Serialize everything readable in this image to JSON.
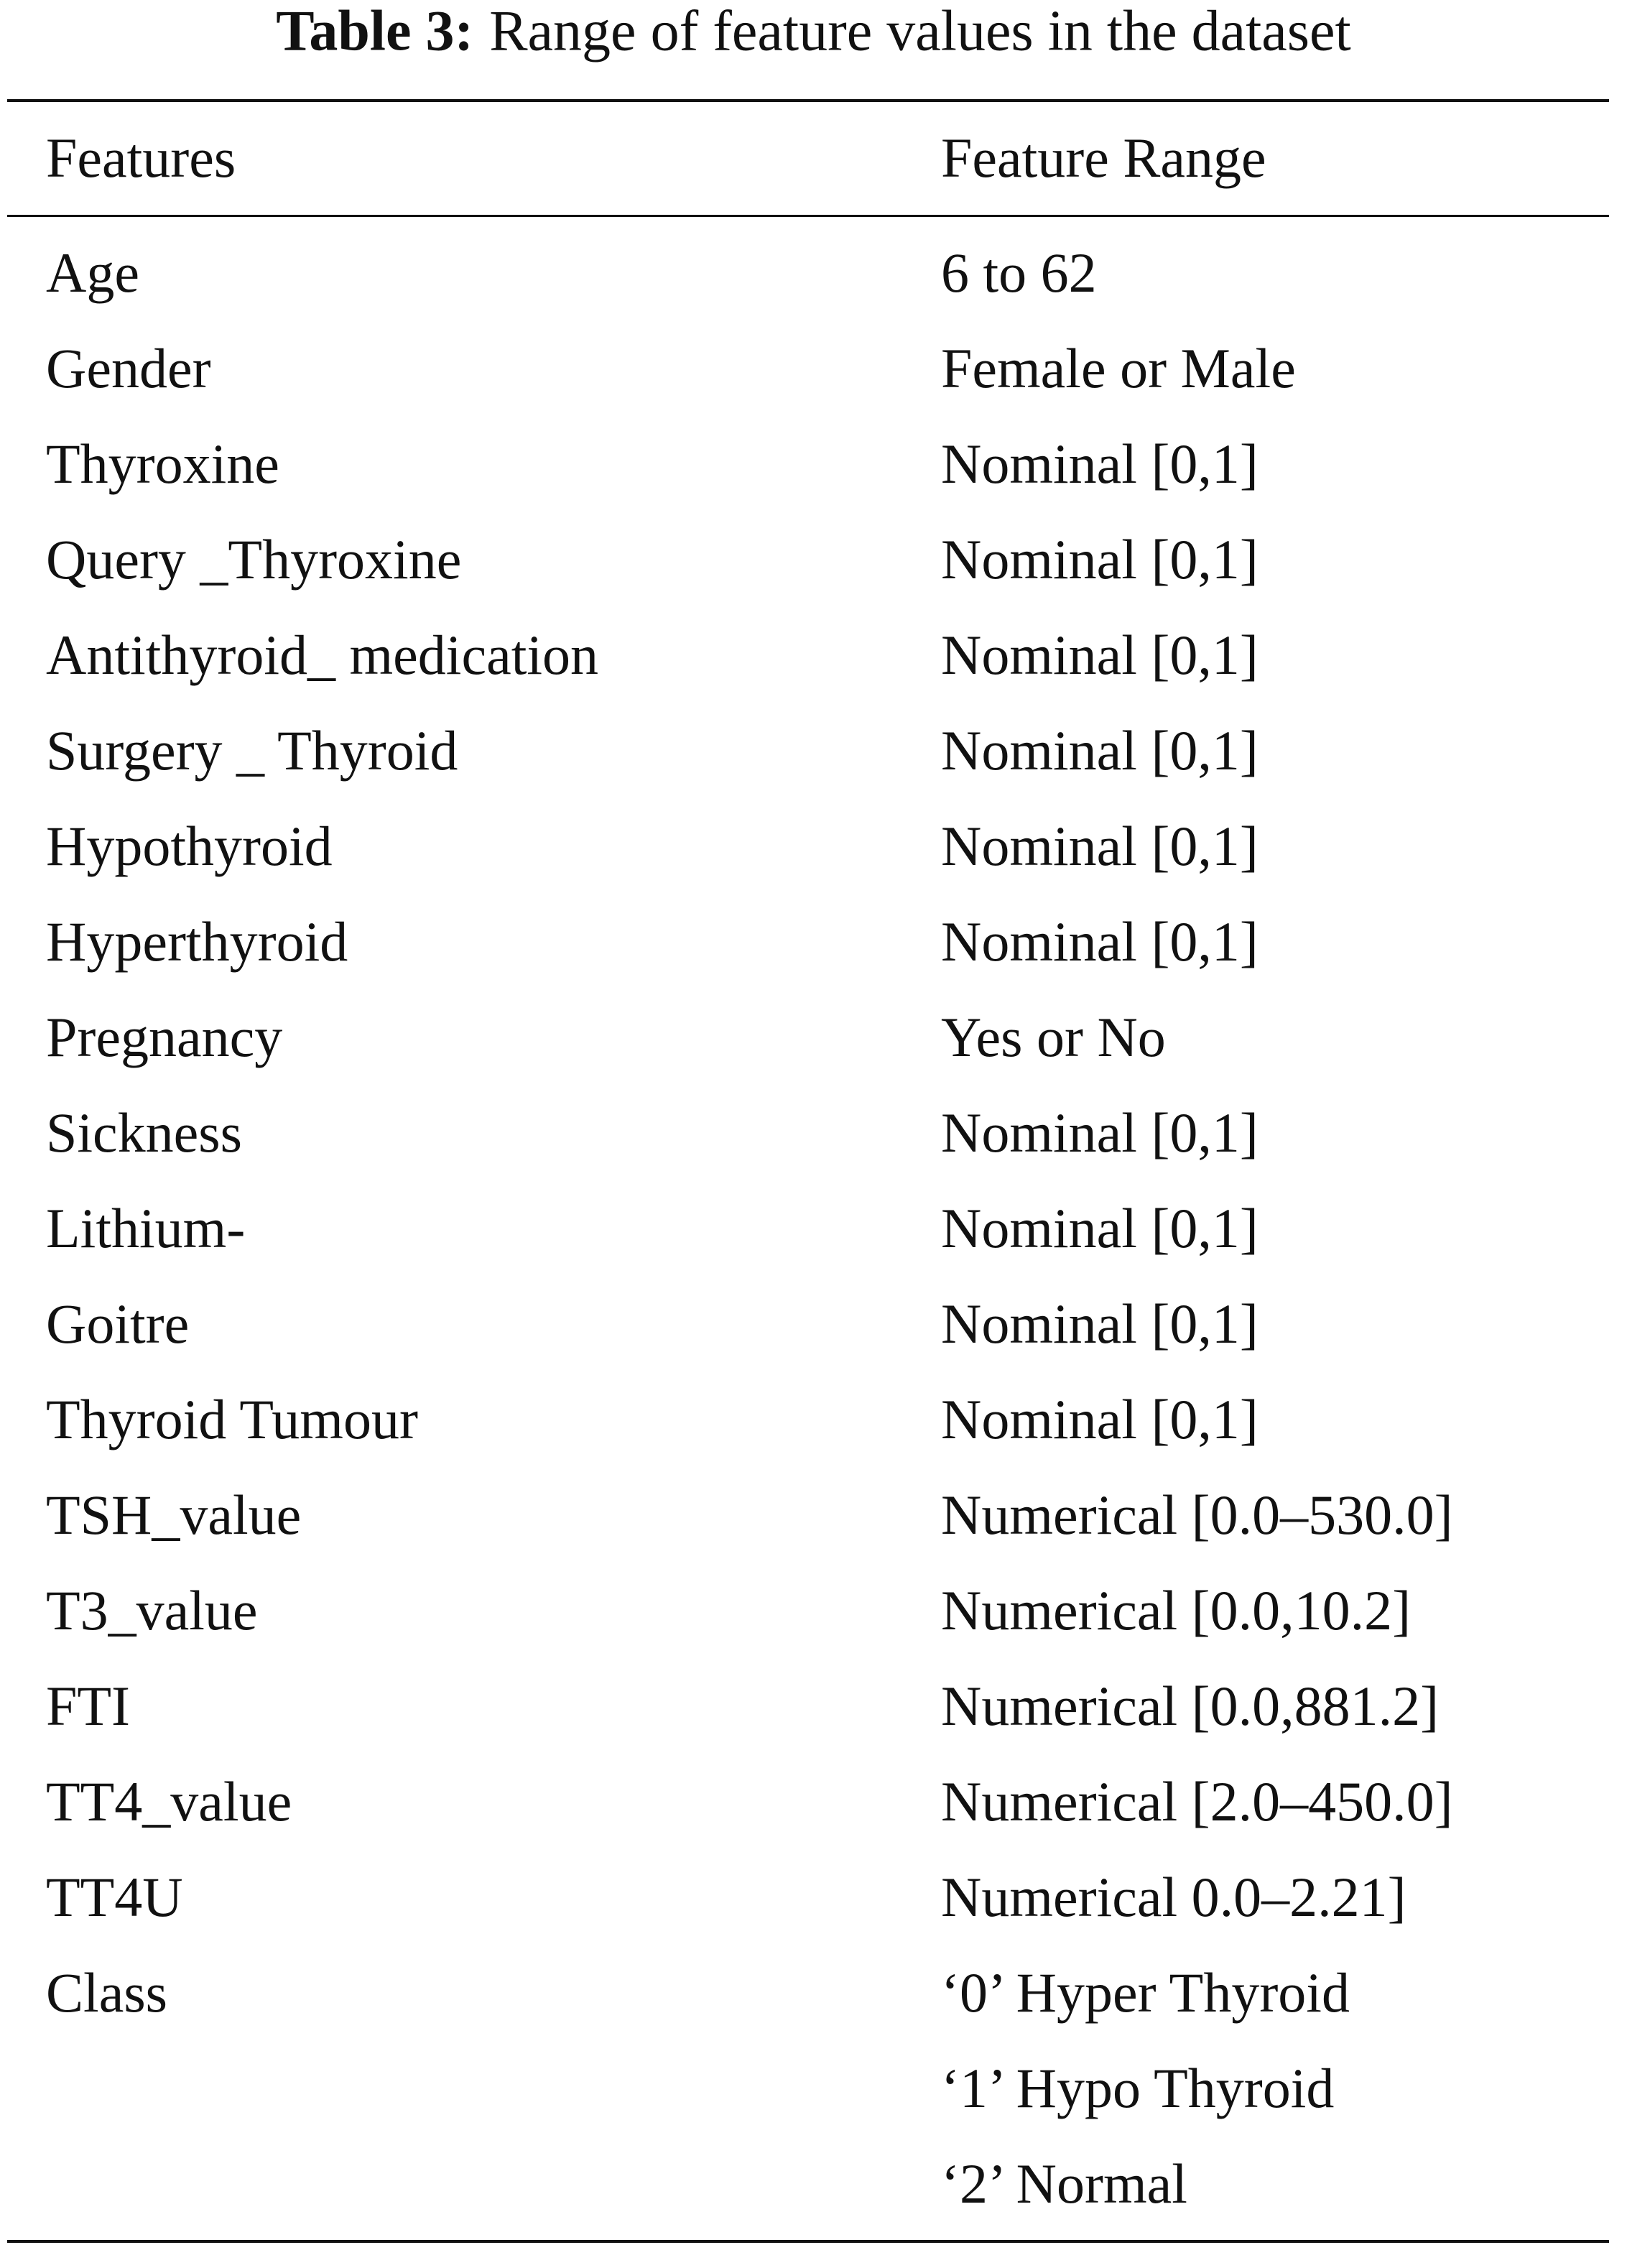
{
  "table": {
    "label": "Table 3:",
    "caption": "Range of feature values in the dataset",
    "header": [
      "Features",
      "Feature Range"
    ],
    "rows": [
      {
        "feature": "Age",
        "range": [
          "6 to 62"
        ]
      },
      {
        "feature": "Gender",
        "range": [
          "Female or Male"
        ]
      },
      {
        "feature": "Thyroxine",
        "range": [
          "Nominal [0,1]"
        ]
      },
      {
        "feature": "Query _Thyroxine",
        "range": [
          "Nominal [0,1]"
        ]
      },
      {
        "feature": "Antithyroid_ medication",
        "range": [
          "Nominal [0,1]"
        ]
      },
      {
        "feature": "Surgery _ Thyroid",
        "range": [
          "Nominal [0,1]"
        ]
      },
      {
        "feature": "Hypothyroid",
        "range": [
          "Nominal [0,1]"
        ]
      },
      {
        "feature": "Hyperthyroid",
        "range": [
          "Nominal [0,1]"
        ]
      },
      {
        "feature": "Pregnancy",
        "range": [
          "Yes or No"
        ]
      },
      {
        "feature": "Sickness",
        "range": [
          "Nominal [0,1]"
        ]
      },
      {
        "feature": "Lithium-",
        "range": [
          "Nominal [0,1]"
        ]
      },
      {
        "feature": "Goitre",
        "range": [
          "Nominal [0,1]"
        ]
      },
      {
        "feature": "Thyroid Tumour",
        "range": [
          "Nominal [0,1]"
        ]
      },
      {
        "feature": "TSH_value",
        "range": [
          "Numerical [0.0–530.0]"
        ]
      },
      {
        "feature": "T3_value",
        "range": [
          "Numerical [0.0,10.2]"
        ]
      },
      {
        "feature": "FTI",
        "range": [
          "Numerical [0.0,881.2]"
        ]
      },
      {
        "feature": "TT4_value",
        "range": [
          "Numerical [2.0–450.0]"
        ]
      },
      {
        "feature": "TT4U",
        "range": [
          "Numerical 0.0–2.21]"
        ]
      },
      {
        "feature": "Class",
        "range": [
          "‘0’ Hyper Thyroid",
          "‘1’ Hypo Thyroid",
          "‘2’ Normal"
        ]
      }
    ]
  }
}
